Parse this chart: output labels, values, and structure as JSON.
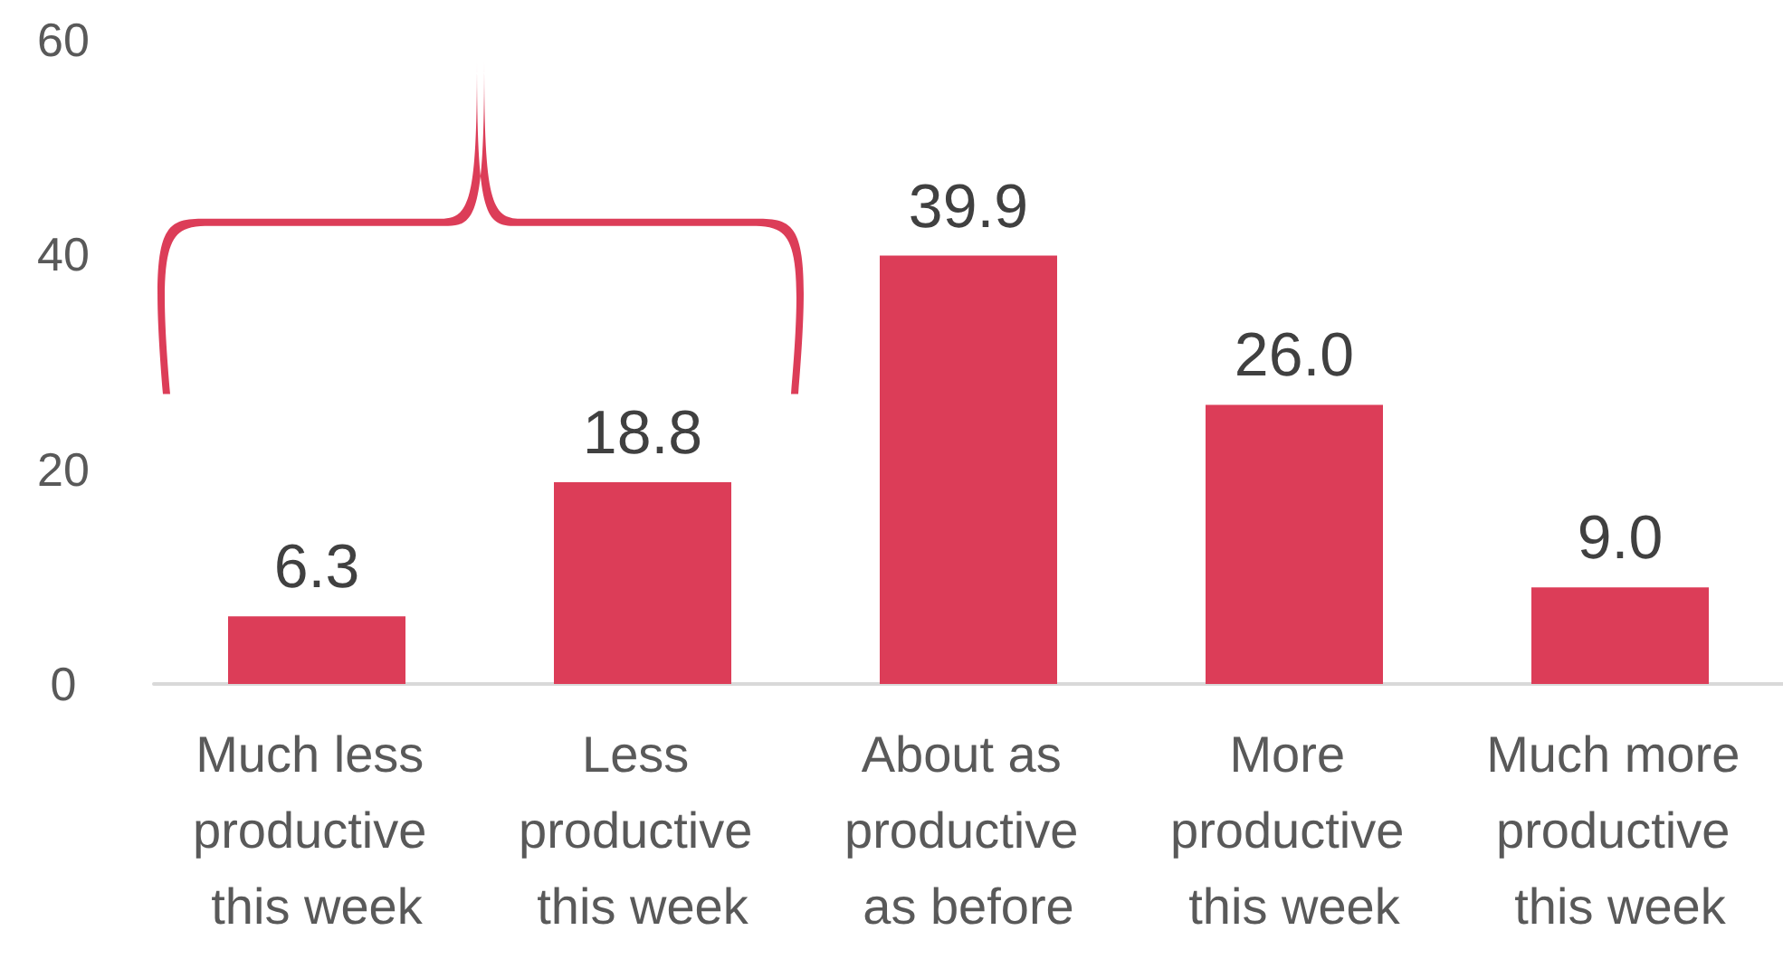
{
  "chart_data": {
    "type": "bar",
    "categories": [
      "Much less productive this week",
      "Less productive this week",
      "About as productive as before",
      "More productive this week",
      "Much more productive this week"
    ],
    "values": [
      6.3,
      18.8,
      39.9,
      26.0,
      9.0
    ],
    "value_labels": [
      "6.3",
      "18.8",
      "39.9",
      "26.0",
      "9.0"
    ],
    "color": "#dc3d58",
    "ylim": [
      0,
      60
    ],
    "yticks": [
      0,
      20,
      40,
      60
    ],
    "grid": false
  }
}
